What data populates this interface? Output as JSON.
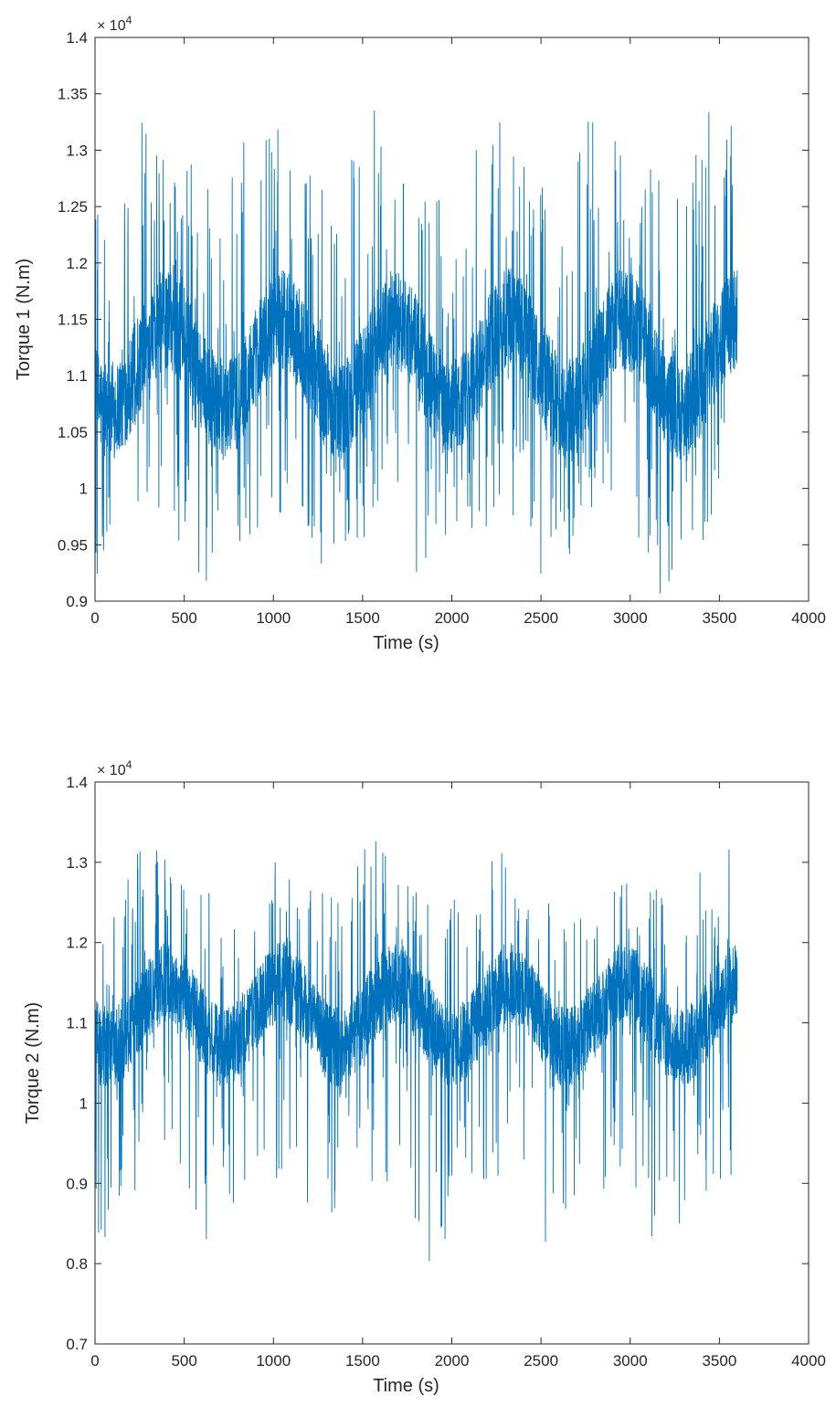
{
  "chart_data": [
    {
      "type": "line",
      "xlabel": "Time (s)",
      "ylabel": "Torque 1 (N.m)",
      "exponent_label": "× 10^4",
      "xlim": [
        0,
        4000
      ],
      "ylim": [
        0.9,
        1.4
      ],
      "xticks": [
        "0",
        "500",
        "1000",
        "1500",
        "2000",
        "2500",
        "3000",
        "3500",
        "4000"
      ],
      "yticks": [
        "0.9",
        "0.95",
        "1",
        "1.05",
        "1.1",
        "1.15",
        "1.2",
        "1.25",
        "1.3",
        "1.35",
        "1.4"
      ],
      "grid": false,
      "series_color": "#0072BD",
      "signal": {
        "x_range": [
          0,
          3600
        ],
        "center": 1.11,
        "slow_period": 640,
        "slow_amplitude": 0.04,
        "band_halfwidth": 0.045,
        "peak_max": 1.352,
        "trough_min": 0.9
      }
    },
    {
      "type": "line",
      "xlabel": "Time (s)",
      "ylabel": "Torque 2 (N.m)",
      "exponent_label": "× 10^4",
      "xlim": [
        0,
        4000
      ],
      "ylim": [
        0.7,
        1.4
      ],
      "xticks": [
        "0",
        "500",
        "1000",
        "1500",
        "2000",
        "2500",
        "3000",
        "3500",
        "4000"
      ],
      "yticks": [
        "0.7",
        "0.8",
        "0.9",
        "1",
        "1.1",
        "1.2",
        "1.3",
        "1.4"
      ],
      "grid": false,
      "series_color": "#0072BD",
      "signal": {
        "x_range": [
          0,
          3600
        ],
        "center": 1.11,
        "slow_period": 640,
        "slow_amplitude": 0.04,
        "band_halfwidth": 0.05,
        "peak_max": 1.33,
        "trough_min": 0.8
      }
    }
  ]
}
